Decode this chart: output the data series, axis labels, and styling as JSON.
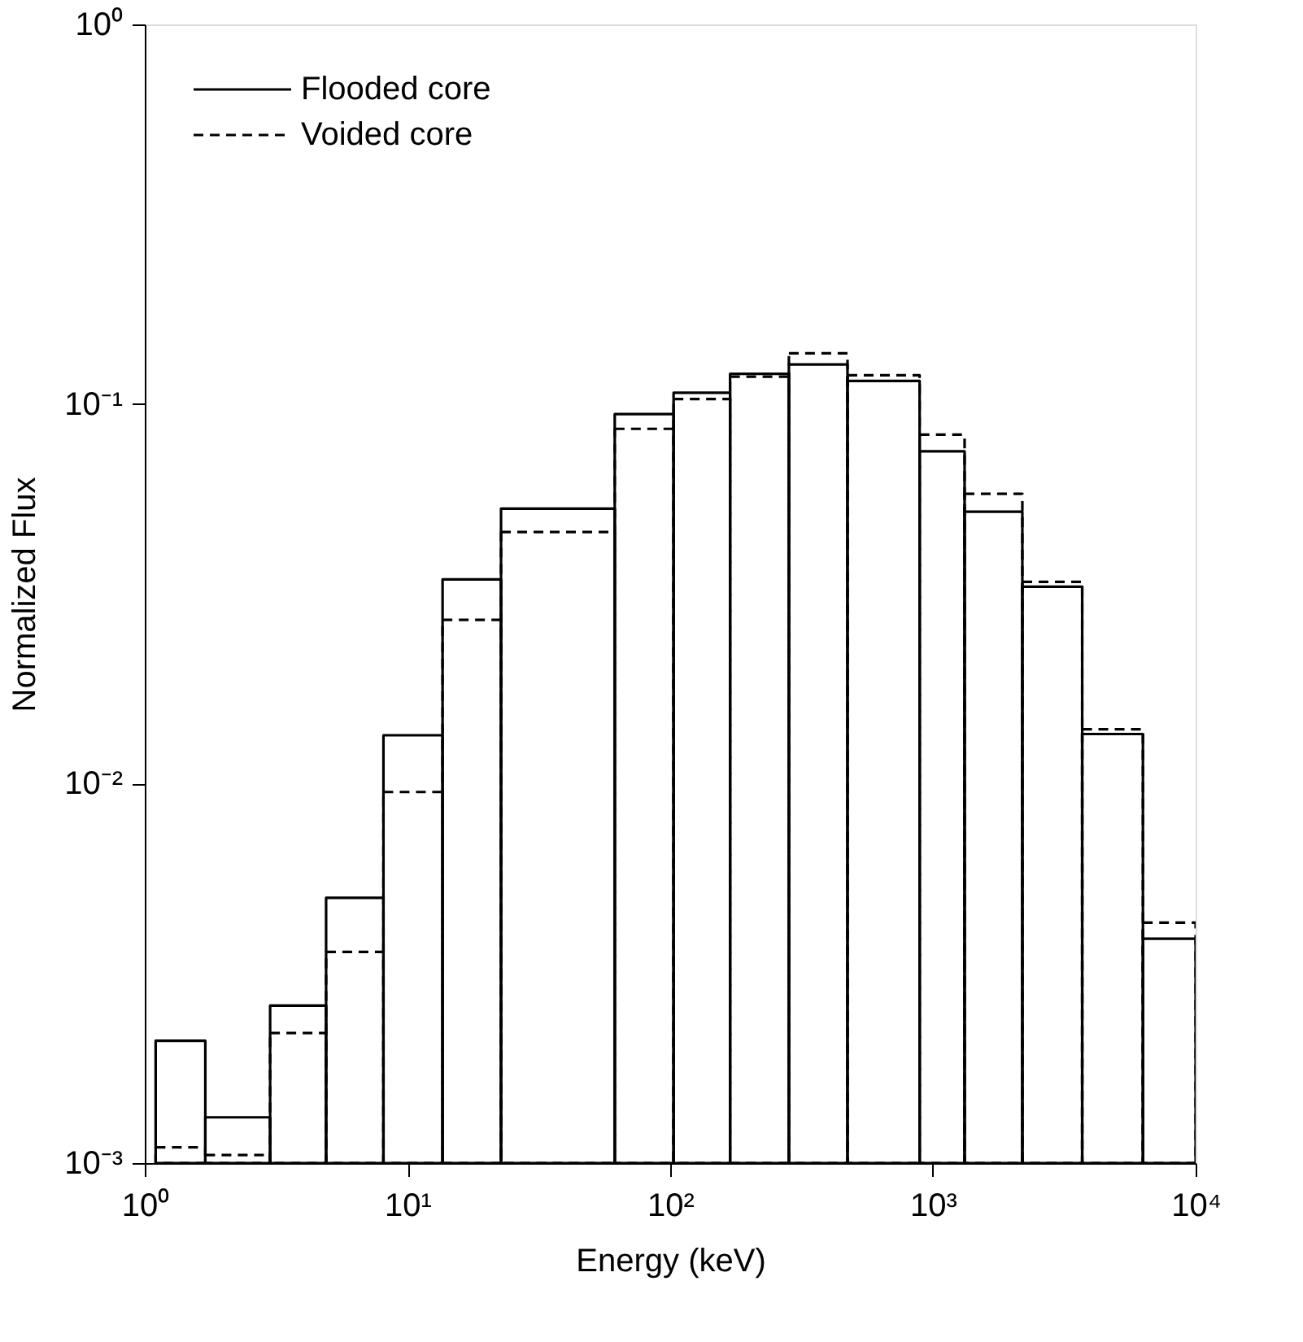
{
  "chart_data": {
    "type": "histogram",
    "xlabel": "Energy (keV)",
    "ylabel": "Normalized Flux",
    "bins": [
      1.1,
      1.7,
      3.0,
      4.9,
      8.1,
      13.6,
      22.7,
      61.5,
      103,
      169,
      283,
      473,
      890,
      1320,
      2190,
      3700,
      6300,
      10000
    ],
    "series": [
      {
        "name": "Flooded core",
        "color": "#000000",
        "line_style": "solid",
        "values": [
          0.0021,
          0.00132,
          0.0026,
          0.005,
          0.0134,
          0.0345,
          0.053,
          0.094,
          0.107,
          0.12,
          0.127,
          0.115,
          0.075,
          0.052,
          0.033,
          0.0135,
          0.0039
        ]
      },
      {
        "name": "Voided core",
        "color": "#000000",
        "line_style": "dashed",
        "values": [
          0.0011,
          0.00105,
          0.0022,
          0.0036,
          0.0095,
          0.027,
          0.046,
          0.086,
          0.103,
          0.118,
          0.136,
          0.119,
          0.083,
          0.058,
          0.034,
          0.0139,
          0.0043
        ]
      }
    ],
    "log": "xy",
    "xlim": [
      1,
      10000
    ],
    "ylim": [
      0.001,
      1
    ],
    "xticks": [
      {
        "value": 1,
        "label": "10⁰"
      },
      {
        "value": 10,
        "label": "10¹"
      },
      {
        "value": 100,
        "label": "10²"
      },
      {
        "value": 1000,
        "label": "10³"
      },
      {
        "value": 10000,
        "label": "10⁴"
      }
    ],
    "yticks": [
      {
        "value": 0.001,
        "label": "10⁻³"
      },
      {
        "value": 0.01,
        "label": "10⁻²"
      },
      {
        "value": 0.1,
        "label": "10⁻¹"
      },
      {
        "value": 1,
        "label": "10⁰"
      }
    ],
    "grid": false,
    "legend": "top left"
  }
}
